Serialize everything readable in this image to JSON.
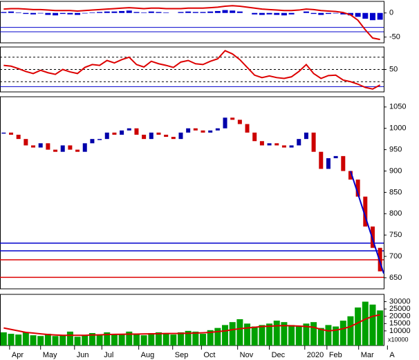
{
  "chart_data": [
    {
      "type": "histogram-line",
      "name": "osc1",
      "ylim": [
        -62,
        24
      ],
      "yticks": [
        0,
        -50
      ],
      "levels": [
        -30,
        -39
      ],
      "level_color": "#0000cc",
      "series": [
        {
          "name": "hist",
          "kind": "bar",
          "color": "#0000cc",
          "values": [
            2,
            3,
            1,
            -2,
            -3,
            -1,
            -4,
            -5,
            -2,
            -3,
            -4,
            -1,
            1,
            2,
            3,
            3,
            4,
            5,
            2,
            1,
            3,
            2,
            1,
            0,
            2,
            3,
            2,
            2,
            3,
            4,
            6,
            5,
            3,
            0,
            -3,
            -4,
            -3,
            -4,
            -5,
            -3,
            0,
            3,
            -2,
            -4,
            -2,
            -1,
            -3,
            -5,
            -8,
            -12,
            -15,
            -14
          ]
        },
        {
          "name": "line",
          "kind": "line",
          "color": "#dd0000",
          "values": [
            8,
            9,
            9,
            8,
            7,
            7,
            6,
            5,
            5,
            5,
            4,
            5,
            6,
            7,
            8,
            9,
            10,
            11,
            10,
            9,
            10,
            10,
            9,
            9,
            9,
            10,
            10,
            10,
            11,
            12,
            14,
            15,
            14,
            12,
            10,
            8,
            7,
            6,
            5,
            5,
            6,
            8,
            7,
            5,
            4,
            3,
            1,
            -4,
            -15,
            -35,
            -52,
            -55
          ]
        }
      ]
    },
    {
      "type": "line",
      "name": "osc2",
      "ylim": [
        -5,
        105
      ],
      "yticks": [
        50
      ],
      "levels": [
        80,
        50,
        20
      ],
      "base": 8,
      "series": [
        {
          "name": "line",
          "color": "#dd0000",
          "values": [
            60,
            58,
            52,
            45,
            40,
            48,
            42,
            38,
            50,
            44,
            40,
            55,
            62,
            60,
            72,
            66,
            74,
            80,
            62,
            56,
            70,
            64,
            60,
            55,
            68,
            72,
            64,
            62,
            70,
            76,
            96,
            88,
            74,
            55,
            36,
            30,
            34,
            30,
            28,
            32,
            45,
            62,
            40,
            28,
            35,
            36,
            24,
            20,
            14,
            6,
            2,
            12
          ]
        }
      ]
    },
    {
      "type": "candle",
      "name": "price",
      "ylim": [
        624,
        1074
      ],
      "yticks": [
        650,
        700,
        750,
        800,
        850,
        900,
        950,
        1000,
        1050
      ],
      "hlines": [
        {
          "value": 731,
          "color": "#0000cc"
        },
        {
          "value": 713,
          "color": "#0000cc"
        },
        {
          "value": 692,
          "color": "#dd0000"
        },
        {
          "value": 651,
          "color": "#dd0000"
        }
      ],
      "trend": {
        "x": [
          47,
          51.5
        ],
        "y": [
          900,
          660
        ],
        "color": "#0000cc"
      },
      "up_color": "#0000aa",
      "down_color": "#cc0000",
      "values": [
        990,
        985,
        975,
        960,
        955,
        965,
        950,
        945,
        960,
        950,
        945,
        965,
        975,
        975,
        990,
        985,
        995,
        1000,
        985,
        975,
        990,
        985,
        980,
        975,
        990,
        1000,
        995,
        990,
        995,
        1000,
        1025,
        1020,
        1010,
        990,
        970,
        960,
        965,
        960,
        955,
        960,
        975,
        990,
        945,
        905,
        930,
        935,
        900,
        880,
        840,
        770,
        720,
        665
      ]
    },
    {
      "type": "volume",
      "name": "volume",
      "ylim": [
        0,
        35000
      ],
      "yticks": [
        30000,
        25000,
        20000,
        15000,
        10000
      ],
      "unit_label": "x10000",
      "bar_color": "#00a000",
      "ma_color": "#dd0000",
      "values": [
        9000,
        8000,
        7500,
        9000,
        7000,
        6500,
        8000,
        6500,
        7000,
        9500,
        6000,
        7000,
        8500,
        7000,
        9000,
        8000,
        7500,
        9500,
        8000,
        7000,
        8500,
        9000,
        8000,
        7500,
        9000,
        10000,
        9500,
        8000,
        10500,
        12000,
        14000,
        16000,
        18000,
        15000,
        13000,
        14000,
        15000,
        17000,
        16000,
        14000,
        13000,
        15000,
        16000,
        12000,
        14000,
        13000,
        17000,
        20000,
        26000,
        30000,
        28000,
        24000
      ],
      "ma": [
        12000,
        11000,
        10000,
        9000,
        8500,
        8000,
        7500,
        7200,
        7000,
        7000,
        7000,
        7000,
        7200,
        7300,
        7500,
        7600,
        7700,
        7800,
        7800,
        7900,
        8000,
        8100,
        8200,
        8200,
        8300,
        8400,
        8500,
        8700,
        9000,
        9500,
        10000,
        10800,
        11500,
        12000,
        12500,
        13000,
        13200,
        13500,
        13600,
        13500,
        13300,
        13000,
        12500,
        11000,
        10000,
        10500,
        11500,
        13000,
        15500,
        18000,
        20000,
        21000
      ]
    },
    {
      "type": "x-axis",
      "xlim": [
        -0.5,
        51.5
      ],
      "xticks": [
        {
          "value": 0.8,
          "label": "Apr"
        },
        {
          "value": 5,
          "label": "May"
        },
        {
          "value": 9.6,
          "label": "Jun"
        },
        {
          "value": 13.3,
          "label": "Jul"
        },
        {
          "value": 18.3,
          "label": "Aug"
        },
        {
          "value": 22.9,
          "label": "Sep"
        },
        {
          "value": 26.8,
          "label": "Oct"
        },
        {
          "value": 31.7,
          "label": "Nov"
        },
        {
          "value": 36,
          "label": "Dec"
        },
        {
          "value": 40.8,
          "label": "2020"
        },
        {
          "value": 43.8,
          "label": "Feb"
        },
        {
          "value": 48.1,
          "label": "Mar"
        },
        {
          "value": 52,
          "label": "A"
        }
      ]
    }
  ]
}
